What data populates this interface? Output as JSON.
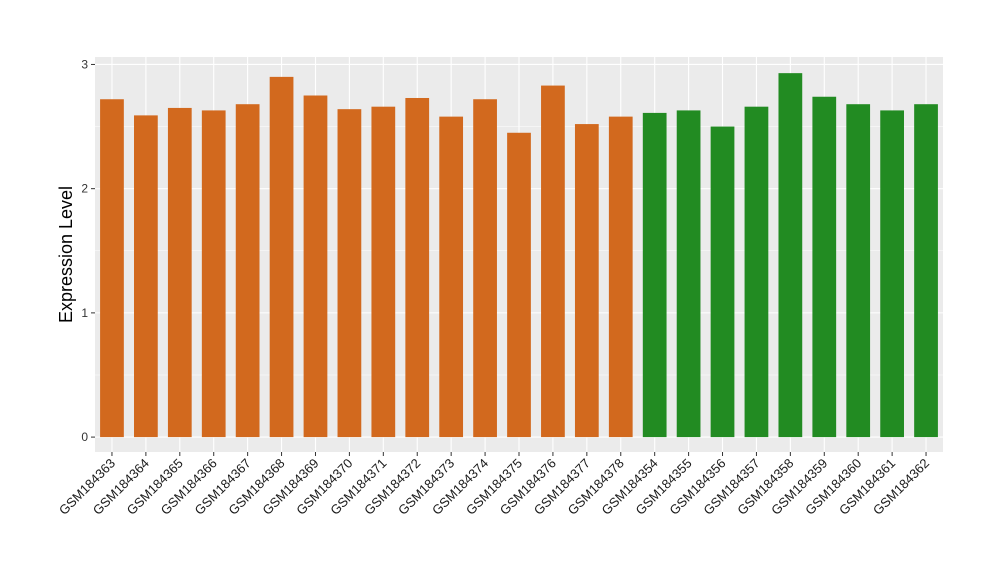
{
  "chart_data": {
    "type": "bar",
    "title": "",
    "xlabel": "",
    "ylabel": "Expression Level",
    "ylim": [
      -0.12,
      3.06
    ],
    "yticks": [
      0,
      1,
      2,
      3
    ],
    "grid": true,
    "legend": "none",
    "categories": [
      "GSM184363",
      "GSM184364",
      "GSM184365",
      "GSM184366",
      "GSM184367",
      "GSM184368",
      "GSM184369",
      "GSM184370",
      "GSM184371",
      "GSM184372",
      "GSM184373",
      "GSM184374",
      "GSM184375",
      "GSM184376",
      "GSM184377",
      "GSM184378",
      "GSM184354",
      "GSM184355",
      "GSM184356",
      "GSM184357",
      "GSM184358",
      "GSM184359",
      "GSM184360",
      "GSM184361",
      "GSM184362"
    ],
    "values": [
      2.72,
      2.59,
      2.65,
      2.63,
      2.68,
      2.9,
      2.75,
      2.64,
      2.66,
      2.73,
      2.58,
      2.72,
      2.45,
      2.83,
      2.52,
      2.58,
      2.61,
      2.63,
      2.5,
      2.66,
      2.93,
      2.74,
      2.68,
      2.63,
      2.68
    ],
    "groups": [
      0,
      0,
      0,
      0,
      0,
      0,
      0,
      0,
      0,
      0,
      0,
      0,
      0,
      0,
      0,
      0,
      1,
      1,
      1,
      1,
      1,
      1,
      1,
      1,
      1
    ],
    "colors": [
      "#D2691E",
      "#228B22"
    ],
    "panel_color": "#EBEBEB",
    "grid_color": "#FFFFFF"
  }
}
